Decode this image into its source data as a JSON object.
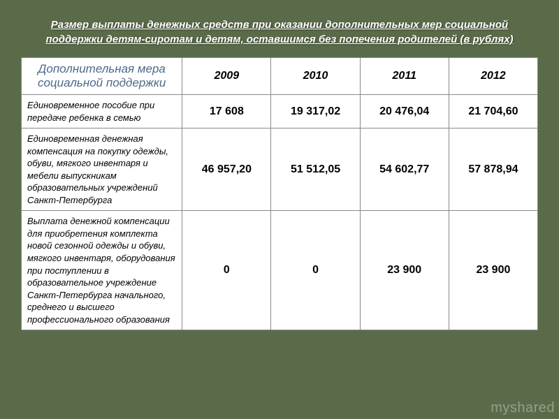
{
  "title": "Размер выплаты денежных средств при оказании дополнительных мер социальной поддержки детям-сиротам и детям, оставшимся без попечения родителей (в рублях)",
  "table": {
    "header_measure": "Дополнительная мера социальной поддержки",
    "years": [
      "2009",
      "2010",
      "2011",
      "2012"
    ],
    "rows": [
      {
        "label": "Единовременное пособие при передаче ребенка в семью",
        "values": [
          "17 608",
          "19 317,02",
          "20 476,04",
          "21 704,60"
        ]
      },
      {
        "label": "Единовременная денежная компенсация на покупку одежды, обуви, мягкого инвентаря и мебели выпускникам образовательных учреждений Санкт-Петербурга",
        "values": [
          "46 957,20",
          "51 512,05",
          "54 602,77",
          "57 878,94"
        ]
      },
      {
        "label": "Выплата денежной компенсации для приобретения комплекта новой сезонной одежды и обуви, мягкого инвентаря, оборудования при поступлении в образовательное учреждение Санкт-Петербурга начального, среднего и высшего профессионального образования",
        "values": [
          "0",
          "0",
          "23 900",
          "23 900"
        ]
      }
    ]
  },
  "watermark": "myshared",
  "colors": {
    "page_bg": "#5a6b4a",
    "table_bg": "#ffffff",
    "border": "#888888",
    "title_text": "#ffffff",
    "header_measure_text": "#4a6a8a"
  }
}
